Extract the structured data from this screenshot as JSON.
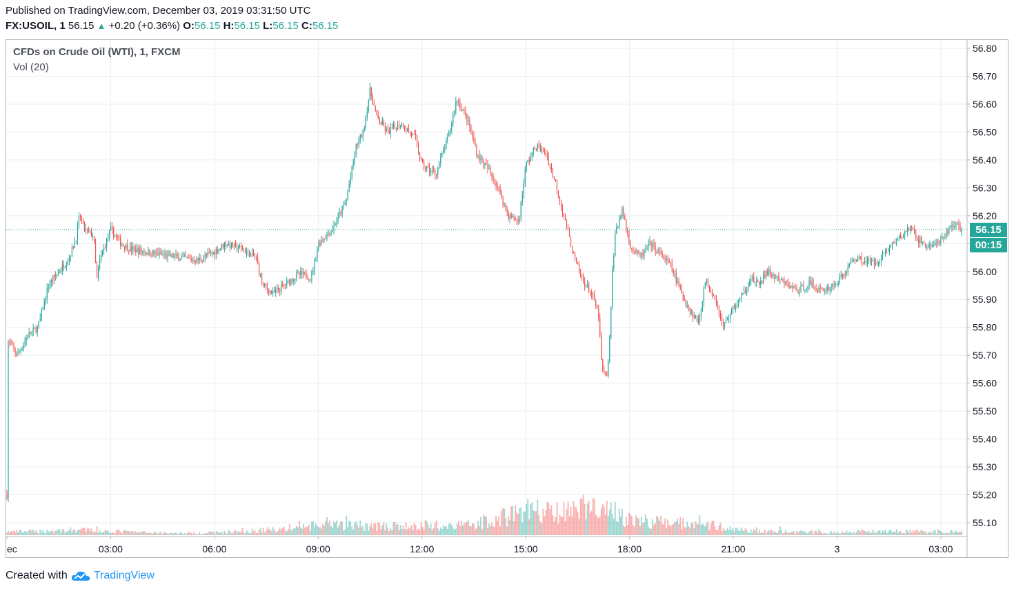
{
  "header": {
    "published": "Published on TradingView.com, December 03, 2019 03:31:50 UTC",
    "symbol": "FX:USOIL, 1",
    "last": "56.15",
    "change": "+0.20 (+0.36%)",
    "o_label": "O:",
    "o_value": "56.15",
    "h_label": "H:",
    "h_value": "56.15",
    "l_label": "L:",
    "l_value": "56.15",
    "c_label": "C:",
    "c_value": "56.15"
  },
  "legend": {
    "title": "CFDs on Crude Oil (WTI), 1, FXCM",
    "volume": "Vol (20)"
  },
  "badges": {
    "price": "56.15",
    "countdown": "00:15"
  },
  "footer": {
    "created_with": "Created with",
    "brand": "TradingView"
  },
  "colors": {
    "up": "#26a69a",
    "down": "#ef5350",
    "grid": "#e9ecf1",
    "axis_text": "#131722"
  },
  "chart_data": {
    "type": "candlestick",
    "title": "CFDs on Crude Oil (WTI), 1, FXCM",
    "ylim": [
      55.05,
      56.82
    ],
    "y_ticks": [
      "56.80",
      "56.70",
      "56.60",
      "56.50",
      "56.40",
      "56.30",
      "56.20",
      "56.10",
      "56.00",
      "55.90",
      "55.80",
      "55.70",
      "55.60",
      "55.50",
      "55.40",
      "55.30",
      "55.20",
      "55.10"
    ],
    "x_ticks": [
      "ec",
      "03:00",
      "06:00",
      "09:00",
      "12:00",
      "15:00",
      "18:00",
      "21:00",
      "3",
      "03:00"
    ],
    "x_tick_hours": [
      0,
      3,
      6,
      9,
      12,
      15,
      18,
      21,
      24,
      27
    ],
    "x_range_hours": [
      0,
      27.6
    ],
    "last_price": 56.15,
    "price_path": [
      [
        0.0,
        55.2
      ],
      [
        0.03,
        55.75
      ],
      [
        0.3,
        55.7
      ],
      [
        0.6,
        55.77
      ],
      [
        0.9,
        55.8
      ],
      [
        1.2,
        55.95
      ],
      [
        1.5,
        56.0
      ],
      [
        1.8,
        56.05
      ],
      [
        2.0,
        56.12
      ],
      [
        2.1,
        56.2
      ],
      [
        2.25,
        56.15
      ],
      [
        2.5,
        56.13
      ],
      [
        2.6,
        55.97
      ],
      [
        2.7,
        56.05
      ],
      [
        3.0,
        56.15
      ],
      [
        3.3,
        56.1
      ],
      [
        3.6,
        56.08
      ],
      [
        4.0,
        56.07
      ],
      [
        4.5,
        56.06
      ],
      [
        5.0,
        56.05
      ],
      [
        5.5,
        56.04
      ],
      [
        6.0,
        56.07
      ],
      [
        6.3,
        56.1
      ],
      [
        6.8,
        56.08
      ],
      [
        7.2,
        56.05
      ],
      [
        7.4,
        55.95
      ],
      [
        7.7,
        55.92
      ],
      [
        8.0,
        55.95
      ],
      [
        8.3,
        55.98
      ],
      [
        8.5,
        55.99
      ],
      [
        8.8,
        55.98
      ],
      [
        9.0,
        56.1
      ],
      [
        9.4,
        56.15
      ],
      [
        9.8,
        56.25
      ],
      [
        10.1,
        56.45
      ],
      [
        10.3,
        56.5
      ],
      [
        10.5,
        56.65
      ],
      [
        10.7,
        56.55
      ],
      [
        11.0,
        56.5
      ],
      [
        11.4,
        56.53
      ],
      [
        11.8,
        56.48
      ],
      [
        12.0,
        56.38
      ],
      [
        12.4,
        56.35
      ],
      [
        12.8,
        56.5
      ],
      [
        13.0,
        56.62
      ],
      [
        13.3,
        56.55
      ],
      [
        13.6,
        56.42
      ],
      [
        14.0,
        56.35
      ],
      [
        14.2,
        56.3
      ],
      [
        14.5,
        56.2
      ],
      [
        14.8,
        56.18
      ],
      [
        15.0,
        56.38
      ],
      [
        15.3,
        56.45
      ],
      [
        15.6,
        56.42
      ],
      [
        15.9,
        56.3
      ],
      [
        16.1,
        56.2
      ],
      [
        16.4,
        56.05
      ],
      [
        16.6,
        55.98
      ],
      [
        16.9,
        55.92
      ],
      [
        17.1,
        55.85
      ],
      [
        17.2,
        55.65
      ],
      [
        17.35,
        55.62
      ],
      [
        17.45,
        55.8
      ],
      [
        17.5,
        56.0
      ],
      [
        17.6,
        56.15
      ],
      [
        17.8,
        56.22
      ],
      [
        18.0,
        56.1
      ],
      [
        18.3,
        56.05
      ],
      [
        18.6,
        56.1
      ],
      [
        18.9,
        56.06
      ],
      [
        19.2,
        56.02
      ],
      [
        19.5,
        55.92
      ],
      [
        19.8,
        55.85
      ],
      [
        20.0,
        55.82
      ],
      [
        20.2,
        55.97
      ],
      [
        20.5,
        55.9
      ],
      [
        20.7,
        55.8
      ],
      [
        21.0,
        55.87
      ],
      [
        21.3,
        55.92
      ],
      [
        21.5,
        55.98
      ],
      [
        21.7,
        55.95
      ],
      [
        22.0,
        56.0
      ],
      [
        22.3,
        55.97
      ],
      [
        22.6,
        55.95
      ],
      [
        22.9,
        55.93
      ],
      [
        23.2,
        55.96
      ],
      [
        23.5,
        55.93
      ],
      [
        23.9,
        55.95
      ],
      [
        24.2,
        55.99
      ],
      [
        24.5,
        56.05
      ],
      [
        24.8,
        56.04
      ],
      [
        25.1,
        56.03
      ],
      [
        25.4,
        56.07
      ],
      [
        25.6,
        56.1
      ],
      [
        25.9,
        56.13
      ],
      [
        26.1,
        56.16
      ],
      [
        26.3,
        56.12
      ],
      [
        26.6,
        56.09
      ],
      [
        26.9,
        56.1
      ],
      [
        27.1,
        56.12
      ],
      [
        27.3,
        56.17
      ],
      [
        27.5,
        56.16
      ],
      [
        27.6,
        56.15
      ]
    ],
    "volume_profile": [
      [
        0,
        0.05
      ],
      [
        1,
        0.06
      ],
      [
        2,
        0.08
      ],
      [
        3,
        0.06
      ],
      [
        4,
        0.04
      ],
      [
        5,
        0.03
      ],
      [
        6,
        0.04
      ],
      [
        7,
        0.06
      ],
      [
        8,
        0.1
      ],
      [
        9,
        0.14
      ],
      [
        10,
        0.15
      ],
      [
        11,
        0.13
      ],
      [
        12,
        0.13
      ],
      [
        13,
        0.14
      ],
      [
        14,
        0.22
      ],
      [
        15,
        0.38
      ],
      [
        16,
        0.32
      ],
      [
        17,
        0.45
      ],
      [
        18,
        0.24
      ],
      [
        19,
        0.18
      ],
      [
        20,
        0.2
      ],
      [
        21,
        0.08
      ],
      [
        22,
        0.06
      ],
      [
        23,
        0.05
      ],
      [
        24,
        0.04
      ],
      [
        25,
        0.07
      ],
      [
        26,
        0.06
      ],
      [
        27,
        0.05
      ]
    ]
  }
}
